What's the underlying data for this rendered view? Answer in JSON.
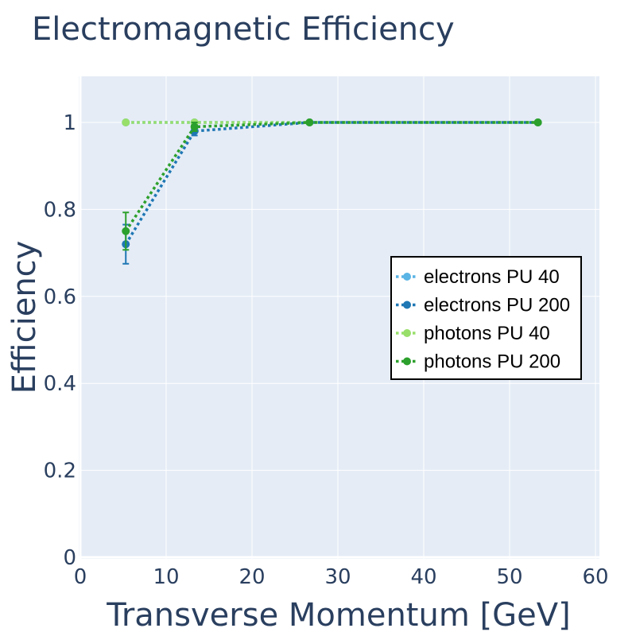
{
  "chart_data": {
    "type": "line",
    "title": "Electromagnetic Efficiency",
    "xlabel": "Transverse Momentum [GeV]",
    "ylabel": "Efficiency",
    "xlim": [
      0,
      60
    ],
    "ylim": [
      0,
      1.1
    ],
    "x_ticks": [
      0,
      10,
      20,
      30,
      40,
      50,
      60
    ],
    "y_ticks": [
      0,
      0.2,
      0.4,
      0.6,
      0.8,
      1
    ],
    "grid": true,
    "legend_position": "right",
    "background_color": "#e5ecf6",
    "series": [
      {
        "name": "electrons PU 40",
        "color": "#5ab4e5",
        "line_style": "dotted",
        "points": [
          {
            "x": 5.3,
            "y": 1.0
          },
          {
            "x": 13.3,
            "y": 1.0
          },
          {
            "x": 26.7,
            "y": 1.0
          },
          {
            "x": 53.3,
            "y": 1.0
          }
        ]
      },
      {
        "name": "electrons PU 200",
        "color": "#1f77b4",
        "line_style": "dotted",
        "points": [
          {
            "x": 5.3,
            "y": 0.72,
            "err": 0.045
          },
          {
            "x": 13.3,
            "y": 0.98,
            "err": 0.01
          },
          {
            "x": 26.7,
            "y": 1.0
          },
          {
            "x": 53.3,
            "y": 1.0
          }
        ]
      },
      {
        "name": "photons PU 40",
        "color": "#98df6a",
        "line_style": "dotted",
        "points": [
          {
            "x": 5.3,
            "y": 1.0
          },
          {
            "x": 13.3,
            "y": 1.0
          },
          {
            "x": 26.7,
            "y": 1.0
          },
          {
            "x": 53.3,
            "y": 1.0
          }
        ]
      },
      {
        "name": "photons PU 200",
        "color": "#2ca02c",
        "line_style": "dotted",
        "points": [
          {
            "x": 5.3,
            "y": 0.75,
            "err": 0.043
          },
          {
            "x": 13.3,
            "y": 0.99,
            "err": 0.01
          },
          {
            "x": 26.7,
            "y": 1.0
          },
          {
            "x": 53.3,
            "y": 1.0
          }
        ]
      }
    ]
  }
}
